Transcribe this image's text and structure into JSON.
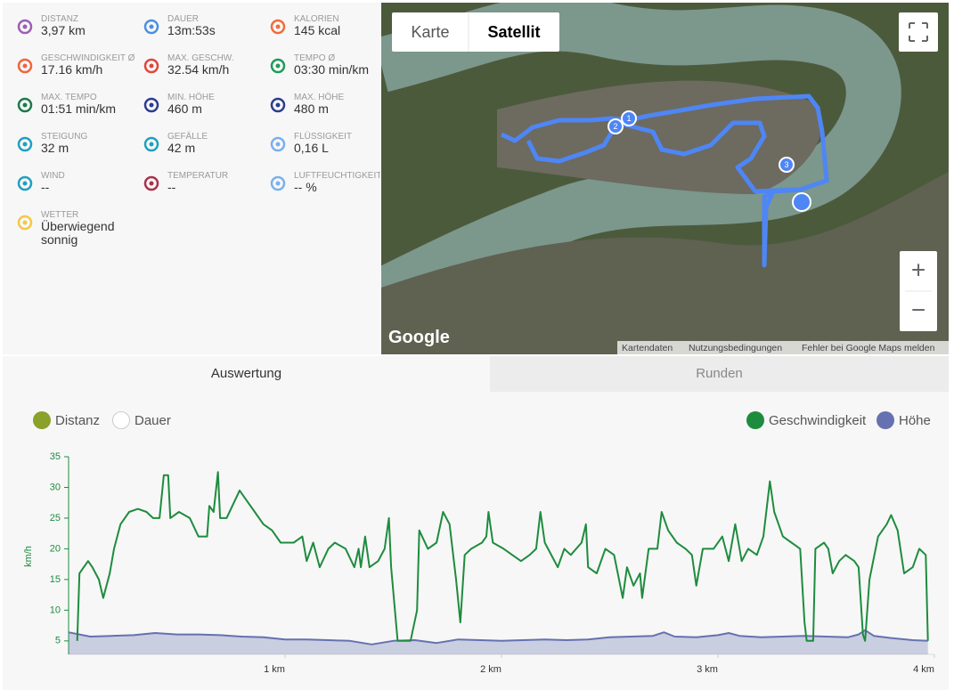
{
  "stats": [
    {
      "label": "DISTANZ",
      "value": "3,97 km"
    },
    {
      "label": "DAUER",
      "value": "13m:53s"
    },
    {
      "label": "KALORIEN",
      "value": "145 kcal"
    },
    {
      "label": "GESCHWINDIGKEIT Ø",
      "value": "17.16 km/h"
    },
    {
      "label": "MAX. GESCHW.",
      "value": "32.54 km/h"
    },
    {
      "label": "TEMPO Ø",
      "value": "03:30 min/km"
    },
    {
      "label": "MAX. TEMPO",
      "value": "01:51 min/km"
    },
    {
      "label": "MIN. HÖHE",
      "value": "460 m"
    },
    {
      "label": "MAX. HÖHE",
      "value": "480 m"
    },
    {
      "label": "STEIGUNG",
      "value": "32 m"
    },
    {
      "label": "GEFÄLLE",
      "value": "42 m"
    },
    {
      "label": "FLÜSSIGKEIT",
      "value": "0,16 L"
    },
    {
      "label": "WIND",
      "value": "--"
    },
    {
      "label": "TEMPERATUR",
      "value": "--"
    },
    {
      "label": "LUFTFEUCHTIGKEIT",
      "value": "-- %"
    },
    {
      "label": "WETTER",
      "value": "Überwiegend sonnig"
    }
  ],
  "map": {
    "map_types": [
      "Karte",
      "Satellit"
    ],
    "logo": "Google",
    "zoom": [
      "+",
      "−"
    ],
    "markers": [
      "1",
      "2",
      "3"
    ],
    "attribution": [
      "Kartendaten",
      "Nutzungsbedingungen",
      "Fehler bei Google Maps melden"
    ]
  },
  "tabs": [
    "Auswertung",
    "Runden"
  ],
  "x_options": [
    "Distanz",
    "Dauer"
  ],
  "chart_data": {
    "type": "line",
    "y_label": "km/h",
    "xlim": [
      0,
      4
    ],
    "xticks": [
      {
        "value": 1,
        "label": "1 km"
      },
      {
        "value": 2,
        "label": "2 km"
      },
      {
        "value": 3,
        "label": "3 km"
      },
      {
        "value": 4,
        "label": "4 km"
      }
    ],
    "ylim": [
      2.8,
      35
    ],
    "yticks": [
      5,
      10,
      15,
      20,
      25,
      30,
      35
    ],
    "y2lim": [
      446,
      724
    ],
    "grid": false,
    "series": [
      {
        "name": "Geschwindigkeit",
        "color": "#1e8c3e",
        "x": [
          0.04,
          0.05,
          0.07,
          0.09,
          0.11,
          0.14,
          0.16,
          0.19,
          0.21,
          0.24,
          0.28,
          0.32,
          0.36,
          0.39,
          0.42,
          0.44,
          0.46,
          0.47,
          0.51,
          0.56,
          0.6,
          0.64,
          0.65,
          0.67,
          0.69,
          0.7,
          0.73,
          0.79,
          0.82,
          0.86,
          0.9,
          0.94,
          0.98,
          1.04,
          1.08,
          1.1,
          1.13,
          1.16,
          1.2,
          1.23,
          1.28,
          1.32,
          1.34,
          1.35,
          1.37,
          1.39,
          1.43,
          1.46,
          1.48,
          1.49,
          1.52,
          1.58,
          1.61,
          1.62,
          1.66,
          1.7,
          1.73,
          1.76,
          1.79,
          1.81,
          1.83,
          1.86,
          1.91,
          1.93,
          1.94,
          1.96,
          2.01,
          2.05,
          2.09,
          2.13,
          2.16,
          2.18,
          2.2,
          2.26,
          2.29,
          2.32,
          2.37,
          2.39,
          2.4,
          2.44,
          2.48,
          2.52,
          2.56,
          2.58,
          2.61,
          2.64,
          2.65,
          2.68,
          2.72,
          2.74,
          2.77,
          2.81,
          2.85,
          2.88,
          2.9,
          2.93,
          2.98,
          3.02,
          3.05,
          3.08,
          3.11,
          3.14,
          3.18,
          3.21,
          3.24,
          3.26,
          3.3,
          3.34,
          3.38,
          3.4,
          3.41,
          3.44,
          3.45,
          3.49,
          3.51,
          3.53,
          3.56,
          3.59,
          3.63,
          3.65,
          3.67,
          3.68,
          3.7,
          3.74,
          3.78,
          3.8,
          3.83,
          3.86,
          3.9,
          3.93,
          3.96,
          3.97
        ],
        "values": [
          5,
          16,
          17,
          18,
          17,
          15,
          12,
          16,
          20,
          24,
          26,
          26.5,
          26,
          25,
          25,
          32,
          32,
          25,
          26,
          25,
          22,
          22,
          27,
          26,
          32.5,
          25,
          25,
          29.5,
          28,
          26,
          24,
          23,
          21,
          21,
          22,
          18,
          21,
          17,
          20,
          21,
          20,
          17,
          20,
          17,
          22,
          17,
          18,
          20,
          25,
          17,
          5,
          5,
          10,
          23,
          20,
          21,
          26,
          24,
          15,
          8,
          19,
          20,
          21,
          22,
          26,
          21,
          20,
          19,
          18,
          19,
          20,
          26,
          21,
          17,
          20,
          19,
          21,
          24,
          17,
          16,
          20,
          19,
          12,
          17,
          14,
          16,
          12,
          20,
          20,
          26,
          23,
          21,
          20,
          19,
          14,
          20,
          20,
          22,
          18,
          24,
          18,
          20,
          19,
          22,
          31,
          26,
          22,
          21,
          20,
          8,
          5,
          5,
          20,
          21,
          20,
          16,
          18,
          19,
          18,
          17,
          6,
          5,
          15,
          22,
          24,
          25.5,
          23,
          16,
          17,
          20,
          19,
          5
        ]
      },
      {
        "name": "Höhe",
        "color": "#6571b0",
        "axis": "y2",
        "x": [
          0,
          0.1,
          0.2,
          0.3,
          0.4,
          0.5,
          0.6,
          0.7,
          0.8,
          0.9,
          1.0,
          1.1,
          1.2,
          1.3,
          1.4,
          1.5,
          1.6,
          1.7,
          1.8,
          1.9,
          2.0,
          2.1,
          2.2,
          2.3,
          2.4,
          2.5,
          2.6,
          2.7,
          2.75,
          2.8,
          2.9,
          3.0,
          3.05,
          3.1,
          3.2,
          3.3,
          3.4,
          3.5,
          3.6,
          3.65,
          3.68,
          3.72,
          3.8,
          3.9,
          3.97
        ],
        "values": [
          477,
          471,
          472,
          473,
          476,
          474,
          474,
          473,
          471,
          470,
          467,
          467,
          466,
          465,
          460,
          465,
          466,
          462,
          467,
          466,
          465,
          466,
          467,
          466,
          467,
          470,
          471,
          472,
          477,
          471,
          470,
          473,
          476,
          472,
          470,
          471,
          472,
          471,
          470,
          474,
          480,
          472,
          469,
          466,
          465
        ]
      }
    ]
  }
}
